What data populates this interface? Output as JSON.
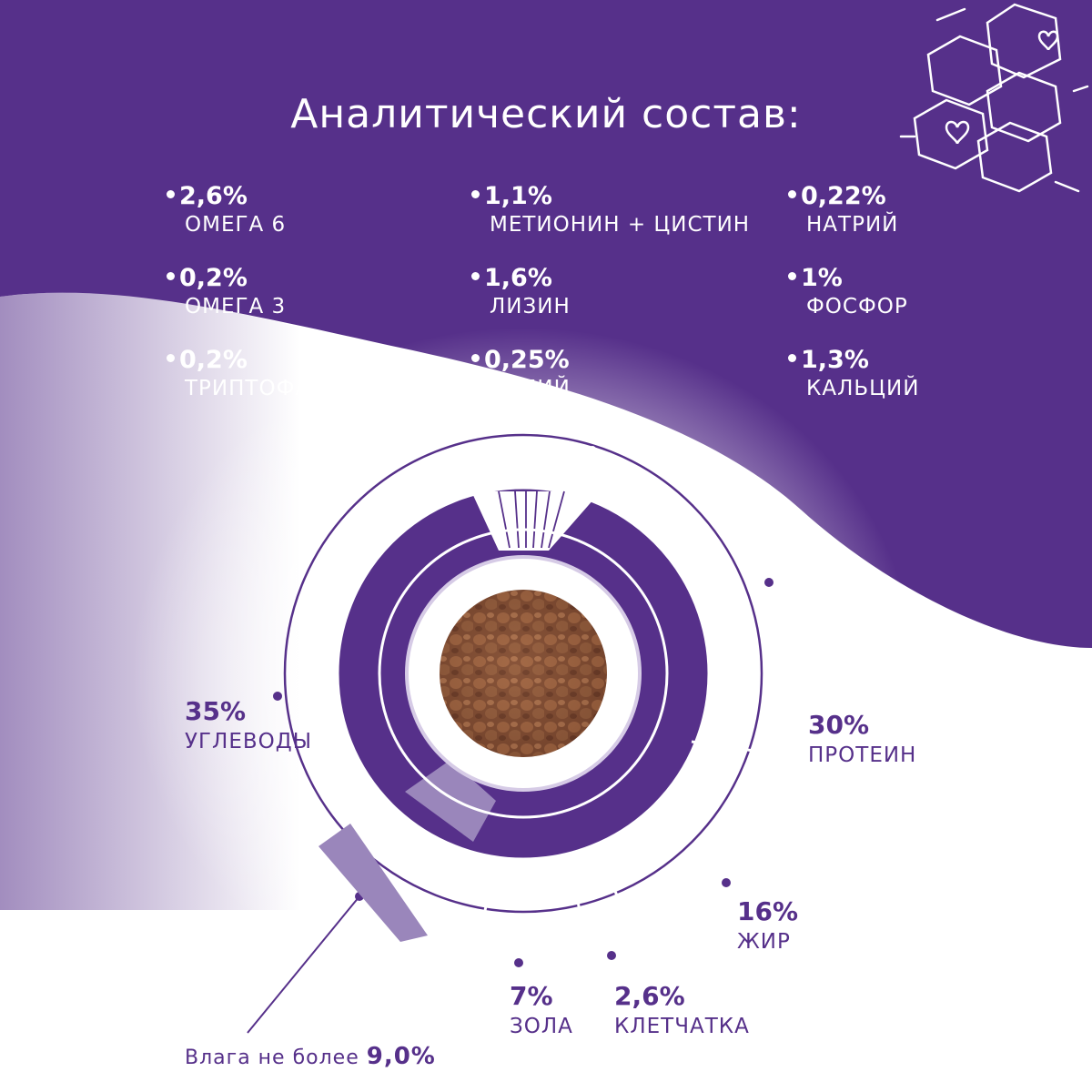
{
  "title": "Аналитический состав:",
  "nutrients": [
    {
      "value": "2,6%",
      "label": "ОМЕГА 6"
    },
    {
      "value": "0,2%",
      "label": "ОМЕГА 3"
    },
    {
      "value": "0,2%",
      "label": "ТРИПТОФАН"
    },
    {
      "value": "1,1%",
      "label": "МЕТИОНИН + ЦИСТИН"
    },
    {
      "value": "1,6%",
      "label": "ЛИЗИН"
    },
    {
      "value": "0,25%",
      "label": "КАЛИЙ"
    },
    {
      "value": "0,22%",
      "label": "НАТРИЙ"
    },
    {
      "value": "1%",
      "label": "ФОСФОР"
    },
    {
      "value": "1,3%",
      "label": "КАЛЬЦИЙ"
    }
  ],
  "macros": {
    "carbs": {
      "value": "35%",
      "label": "УГЛЕВОДЫ"
    },
    "protein": {
      "value": "30%",
      "label": "ПРОТЕИН"
    },
    "fat": {
      "value": "16%",
      "label": "ЖИР"
    },
    "ash": {
      "value": "7%",
      "label": "ЗОЛА"
    },
    "fiber": {
      "value": "2,6%",
      "label": "КЛЕТЧАТКА"
    }
  },
  "moisture": {
    "text": "Влага не более",
    "value": "9,0%"
  },
  "colors": {
    "brand": "#56308a",
    "light": "#9a86bb",
    "white": "#ffffff"
  }
}
